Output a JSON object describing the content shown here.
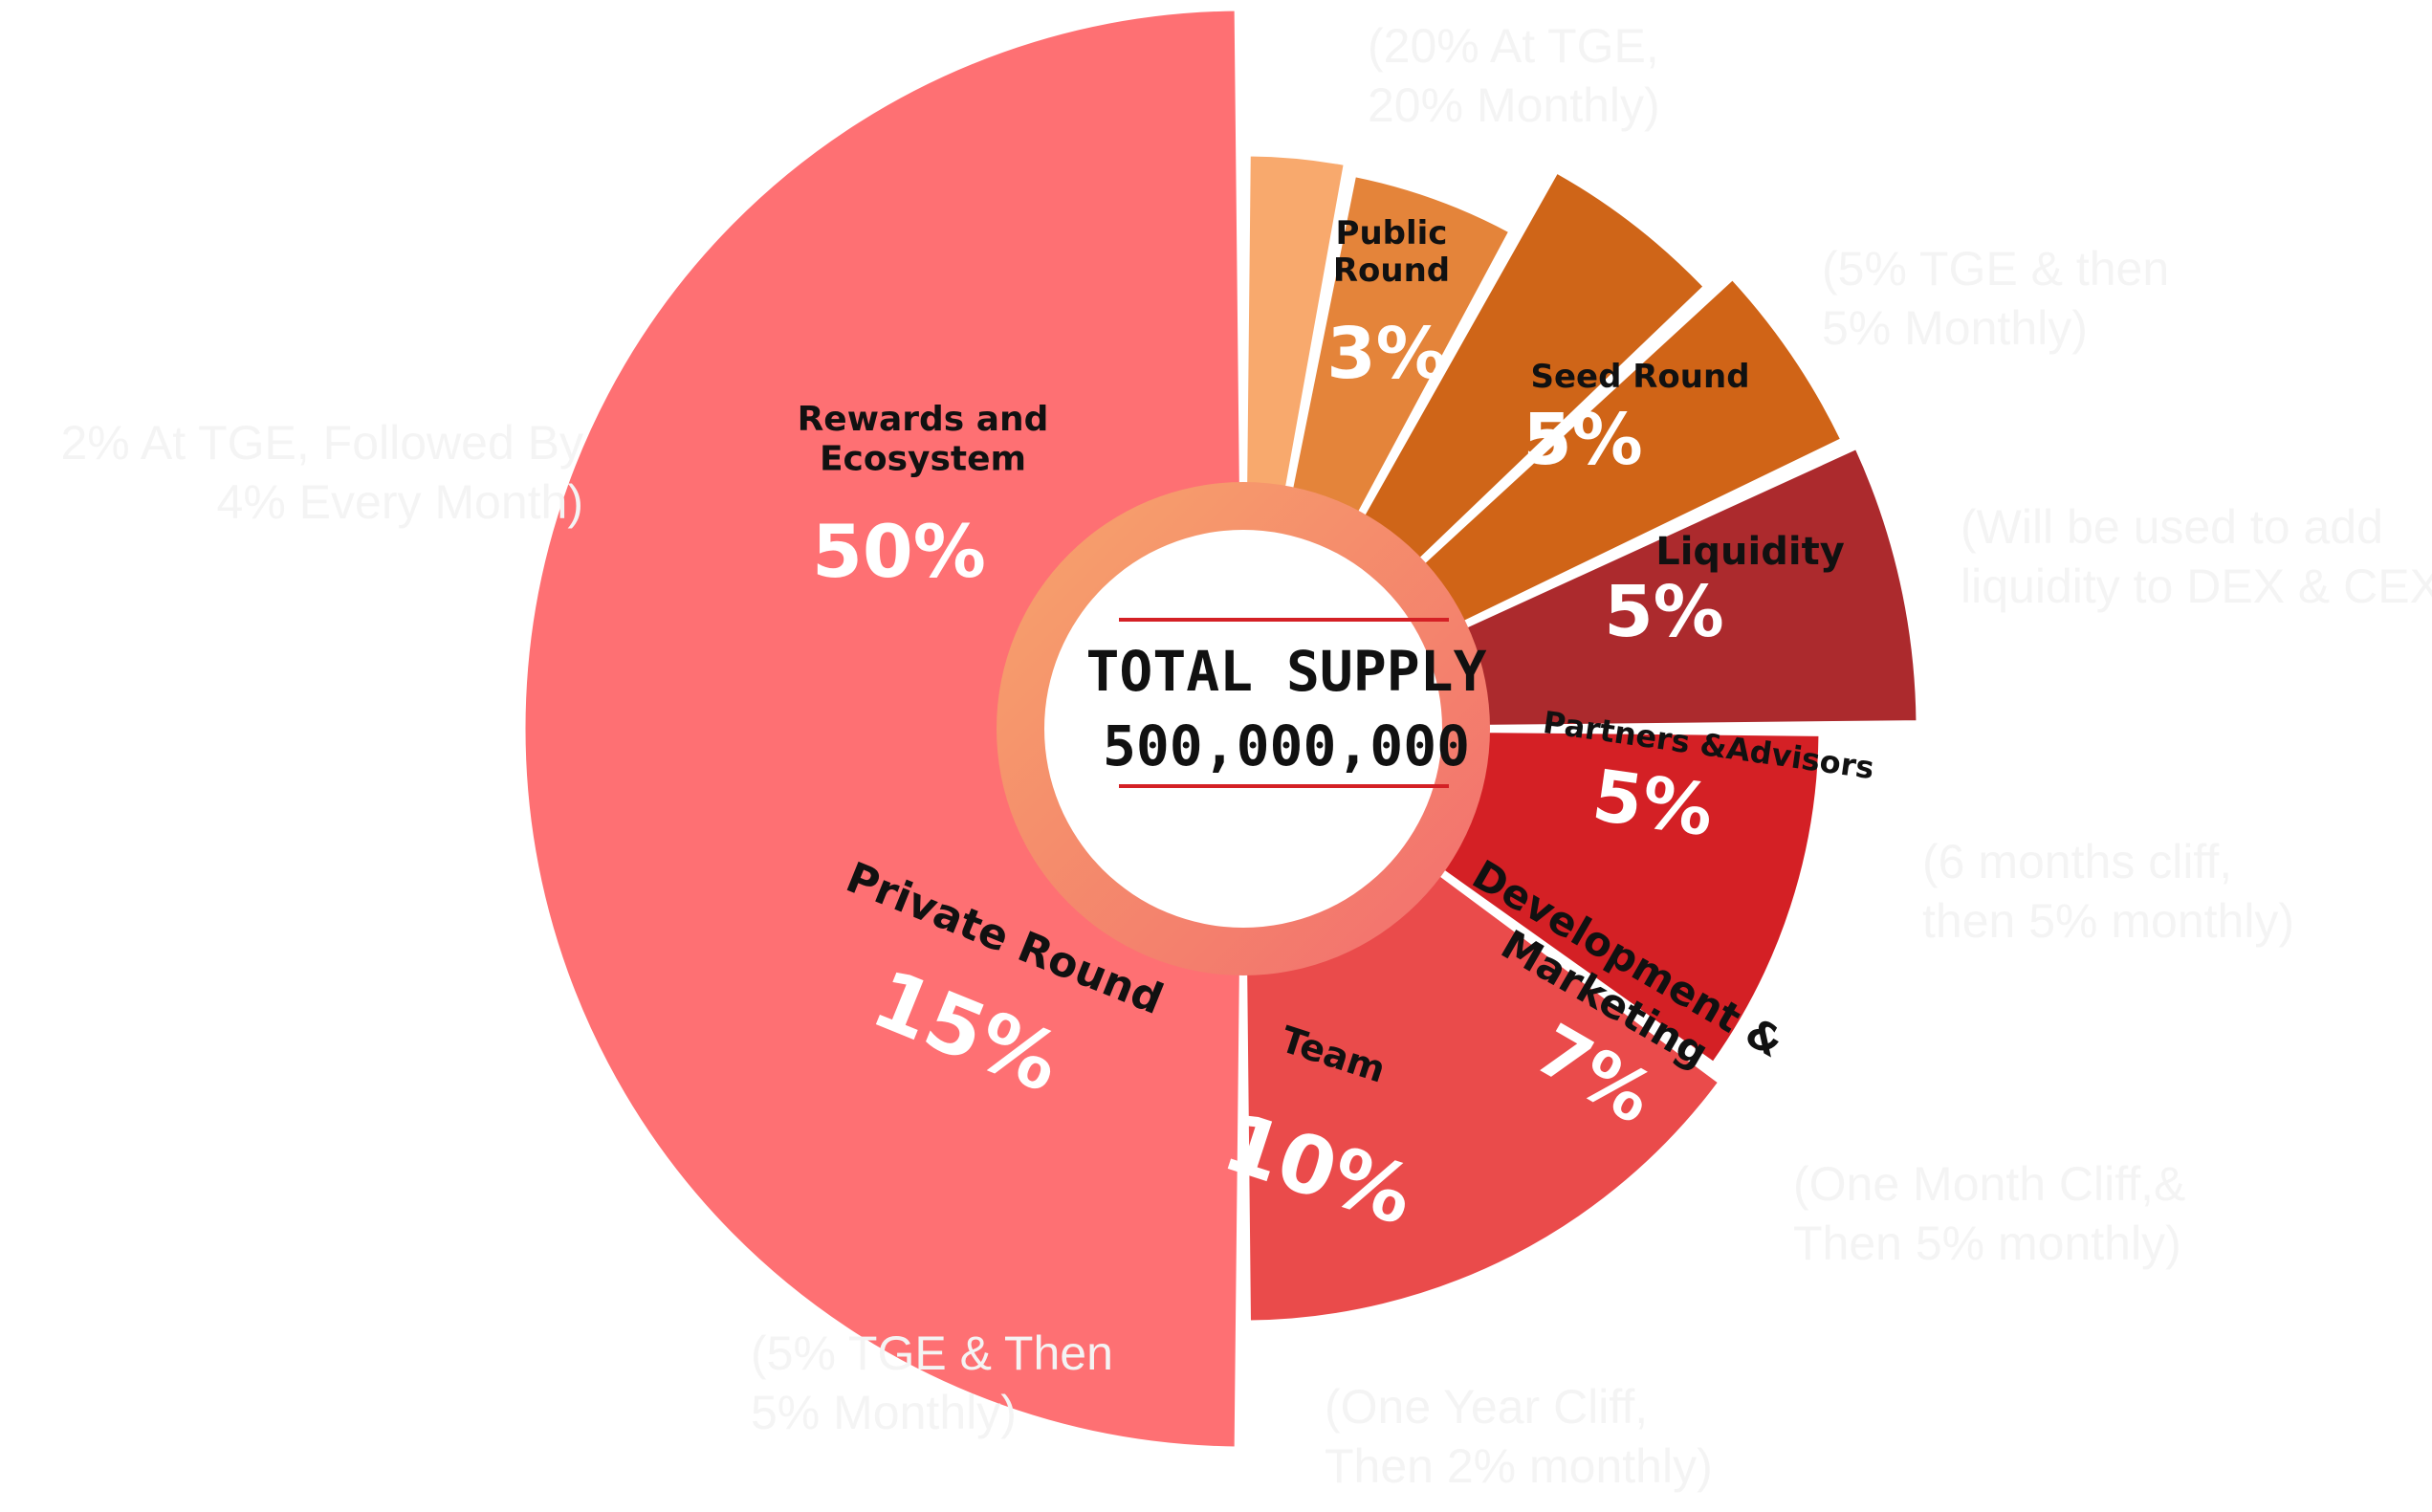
{
  "chart_data": {
    "type": "pie",
    "title": "",
    "center": {
      "label": "TOTAL SUPPLY",
      "value": "500,000,000"
    },
    "slices": [
      {
        "label": "Public Round",
        "value": 3,
        "display": "3%",
        "color": "#F8A96D",
        "note": "(20% At TGE, 20% Monthly)"
      },
      {
        "label": "Seed Round",
        "value": 5,
        "display": "5%",
        "color": "#E4843A",
        "note": "(5% TGE & then 5% Monthly)"
      },
      {
        "label": "Liquidity",
        "value": 5,
        "display": "5%",
        "color": "#CF6518",
        "note": "(Will be used to add liquidity to DEX & CEX)"
      },
      {
        "label": "Partners &Advisors",
        "value": 5,
        "display": "5%",
        "color": "#D06417",
        "note": "(6 months cliff, then 5% monthly)"
      },
      {
        "label": "Development & Marketing",
        "value": 7,
        "display": "7%",
        "color": "#AC2A2D",
        "note": "(One Month Cliff,& Then 5% monthly)"
      },
      {
        "label": "Team",
        "value": 10,
        "display": "10%",
        "color": "#D42025",
        "note": "(One Year Cliff, Then 2% monthly)"
      },
      {
        "label": "Private Round",
        "value": 15,
        "display": "15%",
        "color": "#EA4B4B",
        "note": "(5% TGE & Then 5% Monthly)"
      },
      {
        "label": "Rewards and Ecosystem",
        "value": 50,
        "display": "50%",
        "color": "#FE7073",
        "note": "2% At TGE, Followed By 4% Every Month)"
      }
    ]
  }
}
